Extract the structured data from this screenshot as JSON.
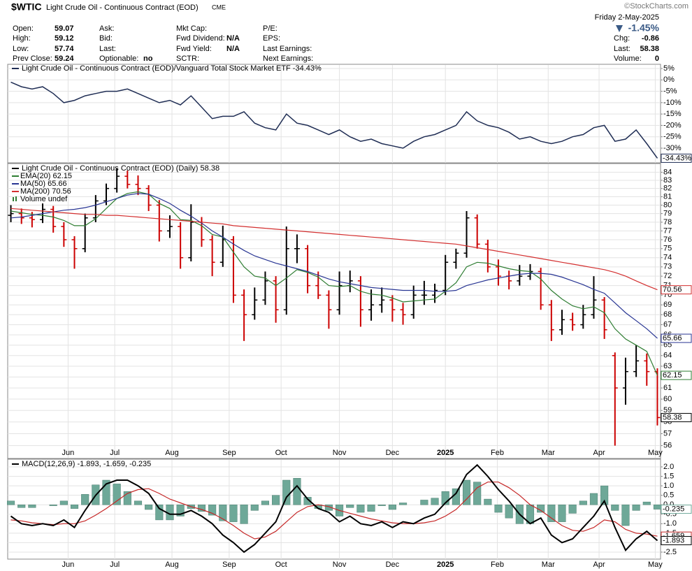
{
  "header": {
    "symbol": "$WTIC",
    "name": "Light Crude Oil - Continuous Contract (EOD)",
    "exchange": "CME",
    "credit": "©StockCharts.com",
    "date": "Friday  2-May-2025",
    "change_pct": "-1.45%",
    "quote": [
      [
        {
          "label": "Open:",
          "value": 59.07
        },
        {
          "label": "Ask:"
        },
        {
          "label": "Mkt Cap:"
        },
        {
          "label": "P/E:"
        }
      ],
      [
        {
          "label": "High:",
          "value": 59.12
        },
        {
          "label": "Bid:"
        },
        {
          "label": "Fwd Dividend:",
          "value": "N/A"
        },
        {
          "label": "EPS:"
        }
      ],
      [
        {
          "label": "Low:",
          "value": 57.74
        },
        {
          "label": "Last:"
        },
        {
          "label": "Fwd Yield:",
          "value": "N/A"
        },
        {
          "label": "Last Earnings:"
        }
      ],
      [
        {
          "label": "Prev Close:",
          "value": 59.24
        },
        {
          "label": "Optionable:",
          "value": "no"
        },
        {
          "label": "SCTR:"
        },
        {
          "label": "Next Earnings:"
        }
      ]
    ],
    "summary": [
      {
        "label": "Chg:",
        "value": -0.86
      },
      {
        "label": "Last:",
        "value": 58.38
      },
      {
        "label": "Volume:",
        "value": 0
      }
    ]
  },
  "chart_data": [
    {
      "type": "line",
      "ylim": [
        -36.45,
        6.54
      ],
      "yticks": [
        {
          "value": 5,
          "label": "5%"
        },
        {
          "value": 0,
          "label": "0%"
        },
        {
          "value": -5,
          "label": "-5%"
        },
        {
          "value": -10,
          "label": "-10%"
        },
        {
          "value": -15,
          "label": "-15%"
        },
        {
          "value": -20,
          "label": "-20%"
        },
        {
          "value": -25,
          "label": "-25%"
        },
        {
          "value": -30,
          "label": "-30%"
        }
      ],
      "grid": true,
      "series": [
        {
          "name": "Light Crude Oil - Continuous Contract (EOD)/Vanguard Total Stock Market ETF -34.43%",
          "color": "#1f2d54",
          "last_value_label": "-34.43%",
          "values": [
            -1,
            -3,
            -4,
            -3,
            -6,
            -10,
            -9,
            -7,
            -6,
            -5,
            -5,
            -4,
            -6,
            -8,
            -10,
            -9,
            -11,
            -7,
            -12,
            -17,
            -16,
            -16,
            -14,
            -19,
            -21,
            -22,
            -15,
            -19,
            -20,
            -22,
            -24,
            -22,
            -25,
            -27,
            -26,
            -28,
            -29,
            -30,
            -27,
            -25,
            -24,
            -22,
            -20,
            -14,
            -18,
            -20,
            -21,
            -23,
            -26,
            -25,
            -27,
            -28,
            -27,
            -25,
            -24,
            -21,
            -20,
            -27,
            -26,
            -22,
            -28,
            -34.43
          ]
        }
      ]
    },
    {
      "type": "ohlc",
      "title": "Light Crude Oil - Continuous Contract (EOD) (Daily) 58.38",
      "log_scale": true,
      "grid": true,
      "up_color": "#000000",
      "down_color": "#cc0000",
      "xlim": [
        -0.3,
        61.3
      ],
      "xticks": [
        {
          "value": 5.4,
          "label": "Jun"
        },
        {
          "value": 9.8,
          "label": "Jul"
        },
        {
          "value": 15.2,
          "label": "Aug"
        },
        {
          "value": 20.6,
          "label": "Sep"
        },
        {
          "value": 25.5,
          "label": "Oct"
        },
        {
          "value": 31,
          "label": "Nov"
        },
        {
          "value": 36,
          "label": "Dec"
        },
        {
          "value": 41,
          "label": "2025"
        },
        {
          "value": 45.9,
          "label": "Feb"
        },
        {
          "value": 50.7,
          "label": "Mar"
        },
        {
          "value": 55.5,
          "label": "Apr"
        },
        {
          "value": 60.8,
          "label": "May"
        }
      ],
      "ylim": [
        55,
        85
      ],
      "yticks": [
        56,
        57,
        58,
        59,
        60,
        61,
        62,
        63,
        64,
        65,
        66,
        67,
        68,
        69,
        70,
        71,
        72,
        73,
        74,
        75,
        76,
        77,
        78,
        79,
        80,
        81,
        82,
        83,
        84
      ],
      "open": [
        78.8,
        79,
        78.5,
        78.3,
        79.5,
        77.5,
        76,
        75,
        78.5,
        80.5,
        82,
        83.5,
        82.5,
        82,
        80,
        77,
        77.5,
        74,
        78,
        76,
        73.5,
        76,
        70,
        68,
        69.5,
        71.5,
        68.5,
        75,
        75,
        71,
        70,
        68.5,
        71,
        71.5,
        68.5,
        69,
        69.5,
        68.5,
        68,
        70,
        70,
        70.5,
        73.5,
        74.5,
        78.5,
        75.5,
        73,
        72,
        71.5,
        72,
        72.5,
        69,
        66.5,
        67.5,
        67,
        68,
        69.5,
        64,
        61,
        62.5,
        63.5,
        62.5
      ],
      "high": [
        80,
        79.6,
        79.2,
        80.2,
        79.9,
        78,
        76.4,
        79,
        81.2,
        82.6,
        84.5,
        84.2,
        83.6,
        82.4,
        80.6,
        78.8,
        78,
        80.1,
        78.6,
        76.5,
        77.6,
        76.4,
        70.6,
        70.8,
        72.5,
        72,
        77.5,
        76.6,
        75.4,
        72.5,
        70.5,
        72.5,
        72.6,
        72,
        70.6,
        70.8,
        70,
        69.2,
        71,
        71.5,
        71.2,
        74.3,
        75,
        79.3,
        78.9,
        76,
        73.8,
        72.6,
        73.2,
        73.3,
        72.9,
        69.5,
        68.5,
        68.2,
        69,
        72,
        69.8,
        64.3,
        63.8,
        65,
        64.2,
        62.8
      ],
      "low": [
        78,
        77.8,
        77.4,
        77.9,
        76.8,
        75.2,
        72.8,
        74.6,
        78,
        80,
        81.5,
        82,
        81.2,
        79.3,
        75.8,
        76.2,
        72.8,
        73.6,
        75.2,
        72,
        73,
        69.2,
        65.4,
        67.5,
        69,
        67.2,
        68,
        73.4,
        70.2,
        69.6,
        66.6,
        68,
        70.3,
        66.8,
        67.4,
        68.2,
        67.3,
        67,
        67.6,
        69,
        69.2,
        70,
        72.8,
        74,
        75,
        72.4,
        71,
        70.6,
        71,
        71.6,
        68.5,
        65.4,
        66,
        66.4,
        66.6,
        67.6,
        65.6,
        56,
        59.5,
        62,
        61.2,
        57.7
      ],
      "close": [
        79,
        78.5,
        78.3,
        79.5,
        77.5,
        76,
        75,
        78.5,
        80.5,
        82,
        83.5,
        82.5,
        82,
        80,
        77,
        77.5,
        74,
        78,
        76,
        73.5,
        76,
        70,
        68,
        69.5,
        71.5,
        68.5,
        75,
        75,
        71,
        70,
        68.5,
        71,
        71.5,
        68.5,
        69,
        69.5,
        68.5,
        68,
        70,
        70,
        70.5,
        73.5,
        74.5,
        78.5,
        75.5,
        73,
        72,
        71.5,
        72,
        72.5,
        69,
        66.5,
        67.5,
        67,
        68,
        69.5,
        66.5,
        61,
        62.5,
        63.5,
        62.5,
        58.38
      ],
      "series": [
        {
          "name": "EMA(20) 62.15",
          "color": "#2e7d32",
          "values": [
            79.3,
            79.1,
            78.9,
            78.8,
            78.6,
            78.2,
            77.6,
            77.6,
            78.4,
            79.6,
            80.8,
            81.4,
            81.6,
            81.3,
            80.2,
            79.6,
            78.3,
            78.2,
            77.6,
            76.6,
            76.3,
            74.6,
            73,
            72,
            71.8,
            71,
            71.8,
            72.7,
            72.4,
            71.9,
            71,
            70.9,
            71,
            70.4,
            70.1,
            70,
            69.7,
            69.3,
            69.4,
            69.5,
            69.6,
            70.4,
            71.3,
            73,
            73.5,
            73.4,
            73.1,
            72.8,
            72.6,
            72.5,
            71.7,
            70.5,
            69.6,
            68.9,
            68.6,
            68.8,
            68.2,
            66.6,
            65.6,
            65,
            64.4,
            62.15
          ]
        },
        {
          "name": "MA(50) 65.66",
          "color": "#283593",
          "values": [
            78.5,
            78.6,
            78.8,
            79,
            79.2,
            79.4,
            79.5,
            79.7,
            80,
            80.4,
            80.8,
            81.2,
            81.4,
            81.3,
            80.8,
            80.2,
            79.4,
            78.7,
            77.9,
            77,
            76.3,
            75.5,
            74.8,
            74.2,
            73.8,
            73.4,
            73.1,
            72.8,
            72.5,
            72.1,
            71.7,
            71.4,
            71.2,
            71,
            70.8,
            70.7,
            70.6,
            70.5,
            70.5,
            70.5,
            70.4,
            70.4,
            70.5,
            71,
            71.3,
            71.6,
            71.8,
            72,
            72.2,
            72.3,
            72.3,
            72.2,
            71.9,
            71.5,
            71.1,
            70.6,
            70.2,
            69.2,
            68.2,
            67.4,
            66.6,
            65.66
          ]
        },
        {
          "name": "MA(200) 70.56",
          "color": "#d32f2f",
          "values": [
            79.6,
            79.5,
            79.4,
            79.3,
            79.2,
            79.1,
            79,
            78.9,
            78.9,
            78.8,
            78.8,
            78.7,
            78.6,
            78.5,
            78.4,
            78.3,
            78.2,
            78.1,
            78,
            77.9,
            77.8,
            77.6,
            77.5,
            77.4,
            77.3,
            77.2,
            77.1,
            77,
            76.9,
            76.8,
            76.7,
            76.6,
            76.5,
            76.4,
            76.3,
            76.2,
            76.1,
            76,
            75.9,
            75.8,
            75.7,
            75.6,
            75.5,
            75.3,
            75.1,
            74.9,
            74.7,
            74.5,
            74.3,
            74.1,
            73.9,
            73.7,
            73.5,
            73.3,
            73.1,
            72.9,
            72.7,
            72.4,
            72,
            71.5,
            71,
            70.56
          ]
        }
      ],
      "legend_extra": "Volume undef"
    },
    {
      "type": "macd",
      "title": "MACD(12,26,9) -1.893, -1.659, -0.235",
      "ylim": [
        -2.87,
        2.37
      ],
      "grid": true,
      "yticks": [
        {
          "value": 2,
          "label": "2.0"
        },
        1.5,
        {
          "value": 1,
          "label": "1.0"
        },
        0.5,
        {
          "value": 0,
          "label": "0.0"
        },
        -0.5,
        {
          "value": -1,
          "label": "-1.0"
        },
        -1.5,
        {
          "value": -2,
          "label": "-2.0"
        },
        -2.5
      ],
      "series": [
        {
          "kind": "histogram",
          "color": "#6ea898",
          "values": [
            0.2,
            -0.15,
            -0.15,
            0,
            -0.05,
            0.2,
            -0.2,
            0.55,
            1.05,
            1.3,
            1.1,
            0.7,
            0.2,
            -0.25,
            -0.8,
            -0.8,
            -0.6,
            -0.2,
            -0.35,
            -0.55,
            -0.85,
            -0.9,
            -1,
            -0.3,
            0.2,
            0.5,
            1.3,
            1.4,
            0.4,
            -0.2,
            -0.3,
            -0.6,
            -0.15,
            -0.4,
            -0.35,
            -0.05,
            -0.25,
            0.1,
            0,
            0.25,
            0.35,
            0.7,
            0.85,
            1.3,
            1.2,
            0.3,
            -0.4,
            -0.7,
            -1,
            -1,
            -0.4,
            -0.9,
            -0.9,
            -0.45,
            0.2,
            0.6,
            1,
            -0.3,
            -1.1,
            -0.3,
            0.15,
            -0.235
          ]
        },
        {
          "kind": "line",
          "color": "#c62828",
          "values": [
            -0.8,
            -0.85,
            -0.95,
            -1,
            -1.05,
            -1,
            -1,
            -0.85,
            -0.55,
            -0.2,
            0.2,
            0.6,
            0.8,
            0.85,
            0.6,
            0.3,
            0.1,
            -0.1,
            -0.25,
            -0.45,
            -0.75,
            -1.1,
            -1.5,
            -1.8,
            -1.7,
            -1.4,
            -0.9,
            -0.4,
            -0.1,
            0,
            -0.1,
            -0.3,
            -0.45,
            -0.6,
            -0.75,
            -0.85,
            -0.95,
            -1,
            -1,
            -0.95,
            -0.85,
            -0.6,
            -0.25,
            0.3,
            0.9,
            1.2,
            1.2,
            0.9,
            0.5,
            0,
            -0.3,
            -0.7,
            -1.1,
            -1.35,
            -1.4,
            -1.2,
            -0.8,
            -0.9,
            -1.3,
            -1.5,
            -1.55,
            -1.659
          ]
        },
        {
          "kind": "line",
          "color": "#000000",
          "values": [
            -0.6,
            -1,
            -1.1,
            -1,
            -1.1,
            -0.8,
            -1.2,
            -0.3,
            0.5,
            1.1,
            1.3,
            1.3,
            1,
            0.6,
            -0.2,
            -0.5,
            -0.5,
            -0.3,
            -0.6,
            -1,
            -1.6,
            -2,
            -2.5,
            -2.1,
            -1.5,
            -0.9,
            0.4,
            1,
            0.3,
            -0.2,
            -0.4,
            -0.9,
            -0.6,
            -1,
            -1.1,
            -0.9,
            -1.2,
            -0.9,
            -1,
            -0.7,
            -0.5,
            0.1,
            0.6,
            1.6,
            2.1,
            1.5,
            0.8,
            0.2,
            -0.5,
            -1,
            -0.7,
            -1.6,
            -2,
            -1.8,
            -1.2,
            -0.6,
            0.2,
            -1.2,
            -2.4,
            -1.8,
            -1.4,
            -1.893
          ]
        }
      ]
    }
  ]
}
